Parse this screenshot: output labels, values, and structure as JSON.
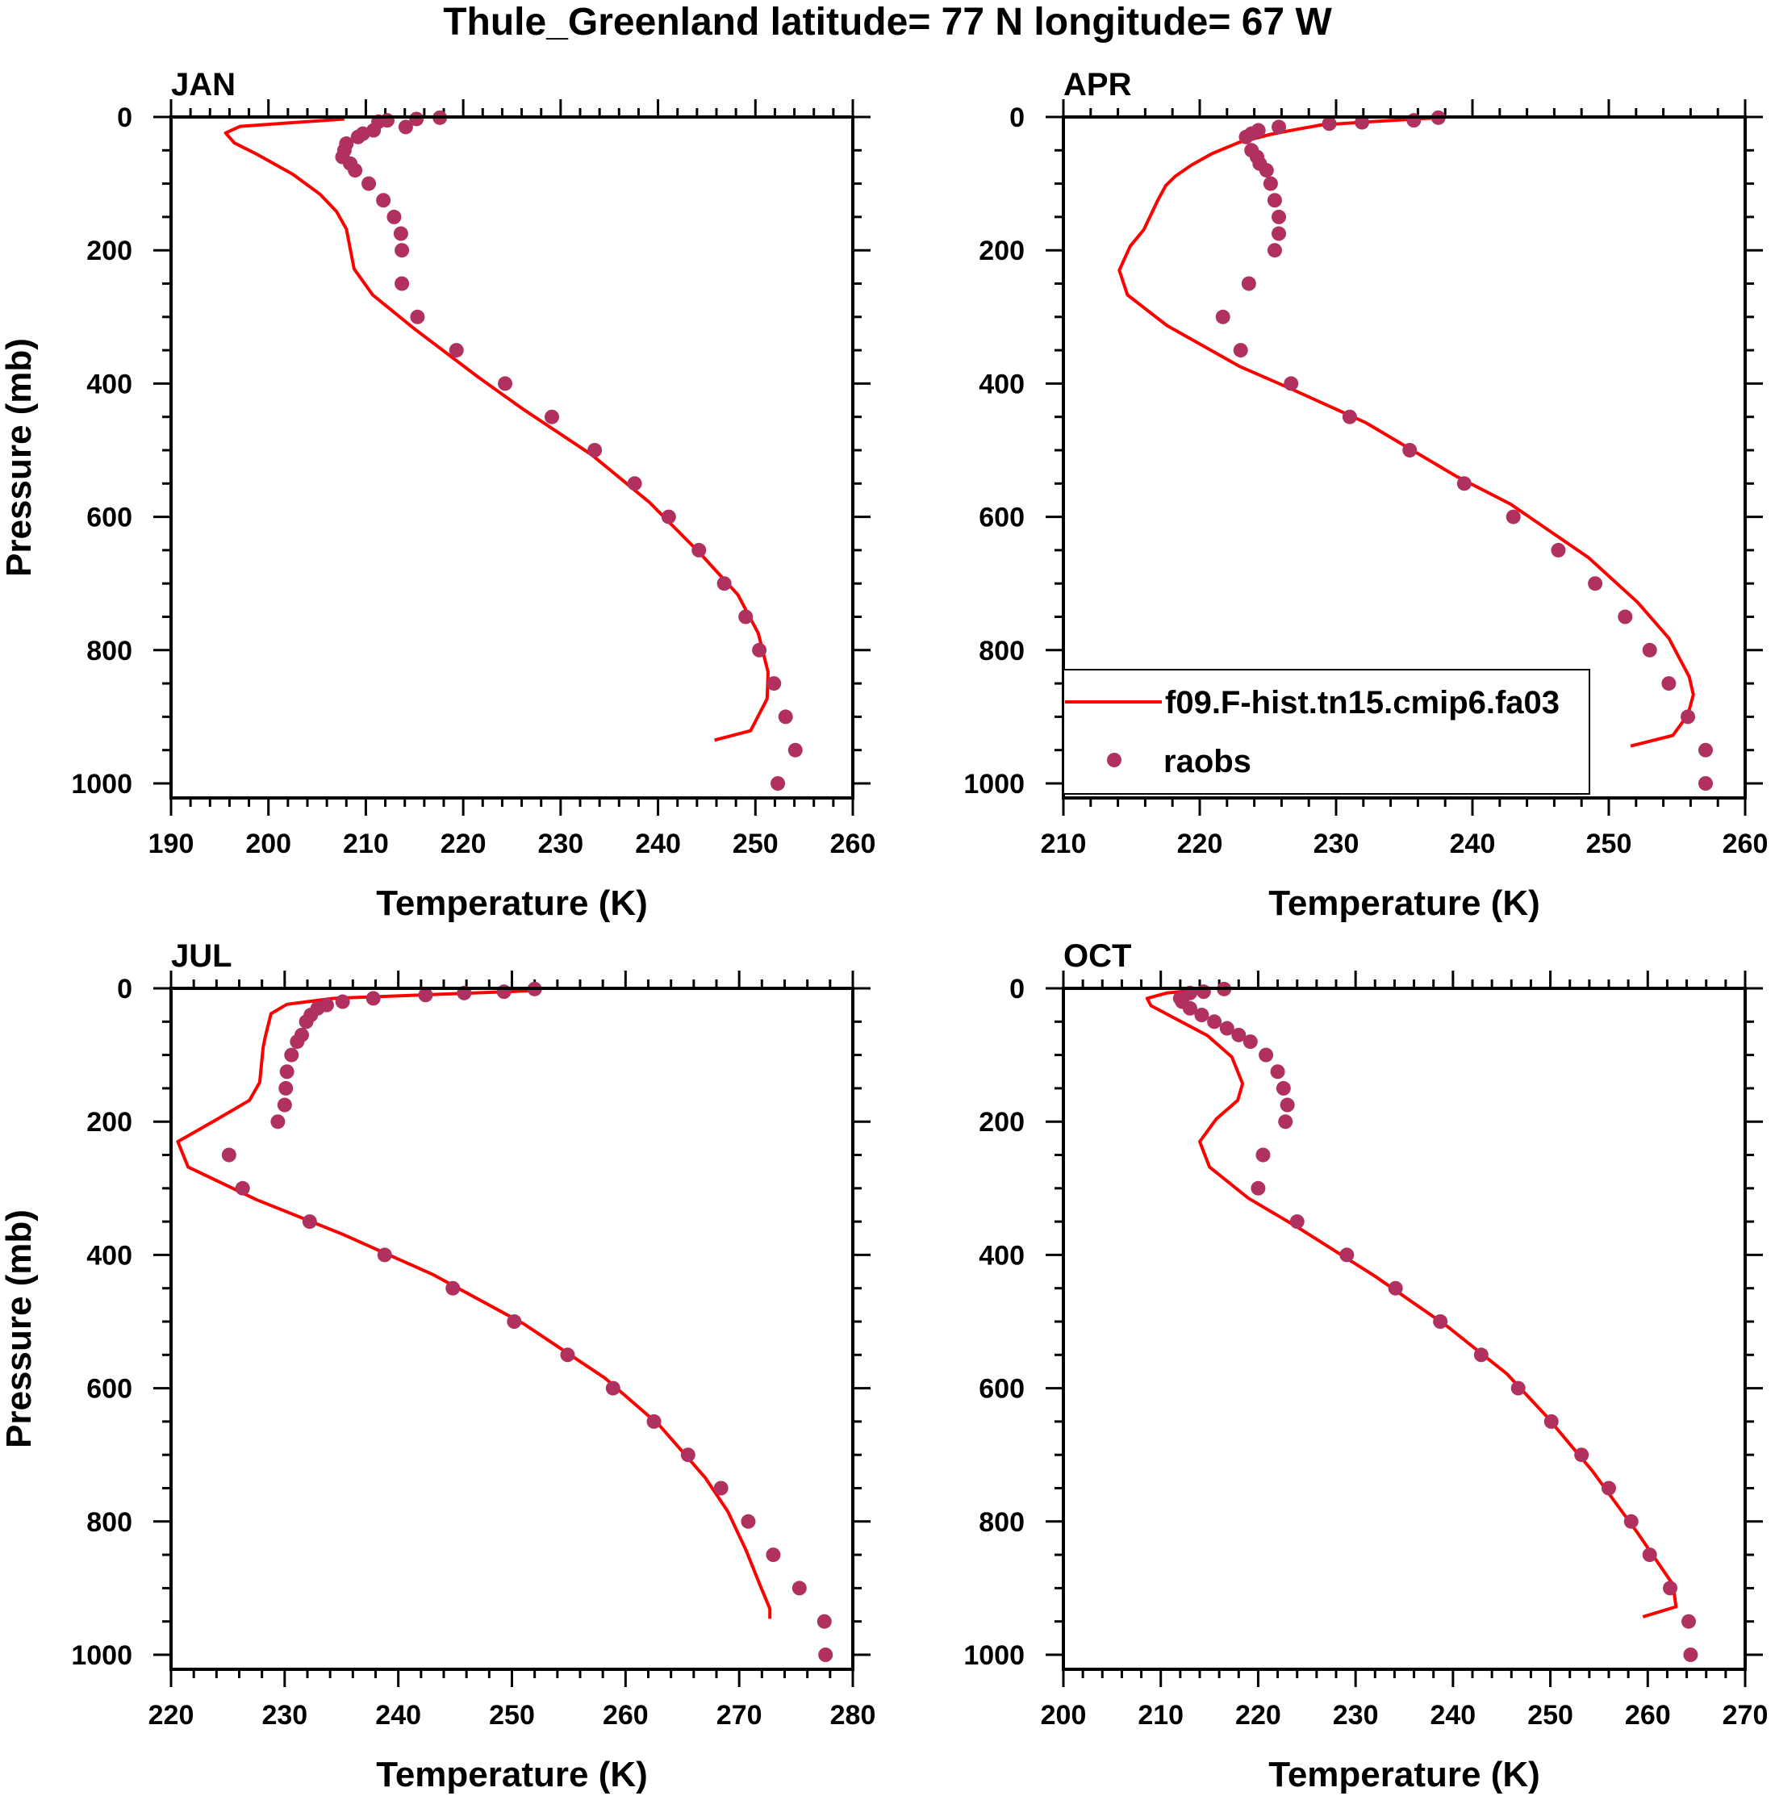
{
  "title": "Thule_Greenland  latitude= 77 N longitude= 67 W",
  "colors": {
    "model": "#ff0000",
    "obs": "#b03060",
    "axis": "#000000"
  },
  "legend": {
    "model_label": "f09.F-hist.tn15.cmip6.fa03",
    "obs_label": "raobs",
    "placement": "inside APR panel, lower-left"
  },
  "chart_data": [
    {
      "type": "line+scatter",
      "title": "JAN",
      "xlabel": "Temperature (K)",
      "ylabel": "Pressure (mb)",
      "xlim": [
        190,
        260
      ],
      "xticks": [
        190,
        200,
        210,
        220,
        230,
        240,
        250,
        260
      ],
      "ylim": [
        0,
        1000
      ],
      "yticks": [
        0,
        200,
        400,
        600,
        800,
        1000
      ],
      "y_inverted": true,
      "model": {
        "p": [
          3,
          14,
          24,
          39,
          55,
          86,
          116,
          142,
          168,
          228,
          267,
          318,
          391,
          439,
          507,
          578,
          656,
          717,
          775,
          833,
          873,
          921,
          935
        ],
        "t": [
          207.8,
          197.1,
          195.6,
          196.5,
          198.7,
          202.5,
          205.3,
          207.0,
          208.0,
          208.8,
          210.7,
          215.0,
          221.6,
          226.2,
          233.2,
          239.1,
          244.4,
          248.2,
          250.3,
          251.3,
          251.2,
          249.5,
          245.8
        ]
      },
      "obs": {
        "p": [
          1,
          3,
          5,
          7,
          15,
          20,
          25,
          30,
          40,
          50,
          60,
          70,
          80,
          100,
          125,
          150,
          175,
          200,
          250,
          300,
          350,
          400,
          450,
          500,
          550,
          600,
          650,
          700,
          750,
          800,
          850,
          900,
          950,
          1000
        ],
        "t": [
          217.6,
          215.2,
          212.2,
          211.3,
          214.1,
          210.8,
          209.7,
          209.2,
          208.0,
          207.8,
          207.6,
          208.4,
          208.9,
          210.3,
          211.8,
          212.9,
          213.6,
          213.7,
          213.7,
          215.3,
          219.3,
          224.3,
          229.1,
          233.5,
          237.6,
          241.1,
          244.2,
          246.8,
          249.0,
          250.4,
          251.9,
          253.1,
          254.1,
          252.3
        ]
      }
    },
    {
      "type": "line+scatter",
      "title": "APR",
      "xlabel": "Temperature (K)",
      "ylabel": "",
      "xlim": [
        210,
        260
      ],
      "xticks": [
        210,
        220,
        230,
        240,
        250,
        260
      ],
      "ylim": [
        0,
        1000
      ],
      "yticks": [
        0,
        200,
        400,
        600,
        800,
        1000
      ],
      "y_inverted": true,
      "model": {
        "p": [
          1,
          8,
          12,
          19,
          26,
          38,
          55,
          72,
          89,
          103,
          126,
          169,
          194,
          230,
          267,
          313,
          374,
          406,
          459,
          539,
          581,
          661,
          728,
          782,
          840,
          867,
          897,
          928,
          944
        ],
        "t": [
          237.5,
          231.8,
          228.9,
          227.0,
          225.2,
          222.9,
          220.9,
          219.4,
          218.2,
          217.5,
          216.9,
          215.9,
          214.9,
          214.1,
          214.7,
          217.6,
          222.9,
          226.5,
          232.2,
          238.8,
          242.8,
          248.5,
          252.1,
          254.4,
          255.9,
          256.2,
          255.8,
          254.7,
          251.6
        ]
      },
      "obs": {
        "p": [
          1,
          5,
          8,
          10,
          15,
          20,
          25,
          30,
          50,
          60,
          70,
          80,
          100,
          125,
          150,
          175,
          200,
          250,
          300,
          350,
          400,
          450,
          500,
          550,
          600,
          650,
          700,
          750,
          800,
          850,
          900,
          950,
          1000
        ],
        "t": [
          237.5,
          235.7,
          231.9,
          229.5,
          225.8,
          224.3,
          223.8,
          223.4,
          223.8,
          224.2,
          224.4,
          224.9,
          225.2,
          225.5,
          225.8,
          225.8,
          225.5,
          223.6,
          221.7,
          223.0,
          226.7,
          231.0,
          235.4,
          239.4,
          243.0,
          246.3,
          249.0,
          251.2,
          253.0,
          254.4,
          255.8,
          257.1,
          257.1
        ]
      }
    },
    {
      "type": "line+scatter",
      "title": "JUL",
      "xlabel": "Temperature (K)",
      "ylabel": "Pressure (mb)",
      "xlim": [
        220,
        280
      ],
      "xticks": [
        220,
        230,
        240,
        250,
        260,
        270,
        280
      ],
      "ylim": [
        0,
        1000
      ],
      "yticks": [
        0,
        200,
        400,
        600,
        800,
        1000
      ],
      "y_inverted": true,
      "model": {
        "p": [
          3,
          15,
          24,
          38,
          72,
          89,
          141,
          168,
          198,
          230,
          268,
          317,
          369,
          429,
          503,
          585,
          656,
          734,
          785,
          843,
          894,
          931,
          946
        ],
        "t": [
          252.6,
          234.3,
          230.2,
          228.8,
          228.3,
          228.1,
          227.8,
          226.9,
          223.9,
          220.6,
          221.5,
          227.5,
          235.1,
          243.0,
          251.0,
          258.2,
          263.0,
          267.0,
          269.0,
          270.6,
          271.8,
          272.7,
          272.7
        ]
      },
      "obs": {
        "p": [
          1,
          5,
          7,
          10,
          15,
          20,
          25,
          30,
          40,
          50,
          70,
          80,
          100,
          125,
          150,
          175,
          200,
          250,
          300,
          350,
          400,
          450,
          500,
          550,
          600,
          650,
          700,
          750,
          800,
          850,
          900,
          950,
          1000
        ],
        "t": [
          252.0,
          249.3,
          245.8,
          242.4,
          237.8,
          235.1,
          233.7,
          232.9,
          232.3,
          231.9,
          231.5,
          231.1,
          230.6,
          230.2,
          230.1,
          230.0,
          229.4,
          225.1,
          226.3,
          232.2,
          238.8,
          244.8,
          250.2,
          254.9,
          258.9,
          262.5,
          265.5,
          268.4,
          270.8,
          273.0,
          275.3,
          277.5,
          277.6
        ]
      }
    },
    {
      "type": "line+scatter",
      "title": "OCT",
      "xlabel": "Temperature (K)",
      "ylabel": "",
      "xlim": [
        200,
        270
      ],
      "xticks": [
        200,
        210,
        220,
        230,
        240,
        250,
        260,
        270
      ],
      "ylim": [
        0,
        1000
      ],
      "yticks": [
        0,
        200,
        400,
        600,
        800,
        1000
      ],
      "y_inverted": true,
      "model": {
        "p": [
          1,
          7,
          15,
          26,
          71,
          103,
          143,
          168,
          196,
          230,
          268,
          315,
          359,
          432,
          507,
          578,
          642,
          724,
          816,
          895,
          928,
          943
        ],
        "t": [
          215.0,
          210.6,
          208.6,
          209.0,
          214.8,
          217.3,
          218.4,
          217.9,
          215.7,
          214.0,
          215.0,
          219.0,
          224.1,
          232.0,
          239.4,
          245.5,
          249.6,
          254.3,
          258.9,
          262.6,
          262.9,
          259.5
        ]
      },
      "obs": {
        "p": [
          1,
          5,
          7,
          15,
          20,
          30,
          40,
          50,
          60,
          70,
          80,
          100,
          125,
          150,
          175,
          200,
          250,
          300,
          350,
          400,
          450,
          500,
          550,
          600,
          650,
          700,
          750,
          800,
          850,
          900,
          950,
          1000
        ],
        "t": [
          216.5,
          214.4,
          213.0,
          212.0,
          212.2,
          213.0,
          214.2,
          215.5,
          216.8,
          218.0,
          219.2,
          220.8,
          222.0,
          222.6,
          223.0,
          222.8,
          220.5,
          220.0,
          224.0,
          229.1,
          234.1,
          238.7,
          242.9,
          246.7,
          250.1,
          253.2,
          256.0,
          258.3,
          260.2,
          262.3,
          264.2,
          264.4
        ]
      }
    }
  ]
}
